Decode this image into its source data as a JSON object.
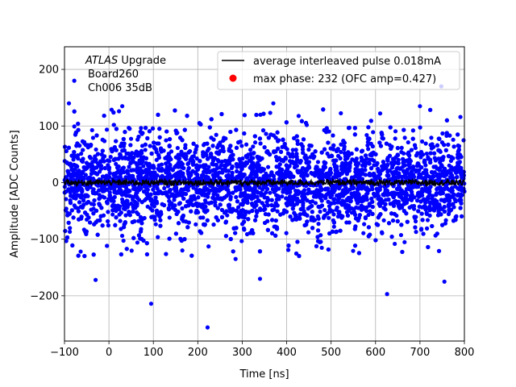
{
  "chart_data": {
    "type": "scatter",
    "title": "",
    "xlabel": "Time [ns]",
    "ylabel": "Amplitude [ADC Counts]",
    "xlim": [
      -100,
      800
    ],
    "ylim": [
      -280,
      240
    ],
    "xticks": [
      -100,
      0,
      100,
      200,
      300,
      400,
      500,
      600,
      700,
      800
    ],
    "yticks": [
      -200,
      -100,
      0,
      100,
      200
    ],
    "xtick_labels": [
      "−100",
      "0",
      "100",
      "200",
      "300",
      "400",
      "500",
      "600",
      "700",
      "800"
    ],
    "ytick_labels": [
      "−200",
      "−100",
      "0",
      "100",
      "200"
    ],
    "grid": true,
    "legend_position": "top-right",
    "annotation": {
      "experiment": "ATLAS",
      "line1_rest": " Upgrade",
      "line2": "Board260",
      "line3": "Ch006 35dB"
    },
    "series": [
      {
        "name": "average interleaved pulse 0.018mA",
        "type": "line",
        "color": "#000000",
        "x_range": [
          -100,
          800
        ],
        "y_level": 0,
        "noise_amplitude": 5
      },
      {
        "name": "max phase: 232 (OFC amp=0.427)",
        "type": "scatter",
        "color": "#0000ff",
        "legend_marker_color": "#ff0000",
        "x_range": [
          -100,
          800
        ],
        "core_band": [
          -60,
          60
        ],
        "notable_points": [
          {
            "x": 222,
            "y": -256
          },
          {
            "x": 95,
            "y": -214
          },
          {
            "x": 626,
            "y": -197
          },
          {
            "x": 748,
            "y": 170
          },
          {
            "x": -78,
            "y": 180
          },
          {
            "x": -90,
            "y": 140
          },
          {
            "x": 370,
            "y": 140
          },
          {
            "x": 30,
            "y": 135
          },
          {
            "x": 700,
            "y": 135
          },
          {
            "x": 285,
            "y": -135
          },
          {
            "x": -30,
            "y": -172
          },
          {
            "x": 340,
            "y": -170
          },
          {
            "x": 755,
            "y": -175
          }
        ]
      }
    ]
  }
}
